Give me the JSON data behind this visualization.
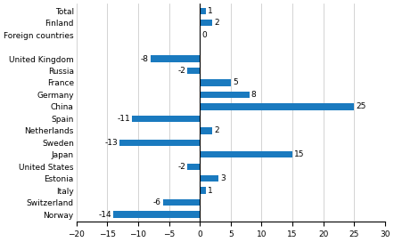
{
  "categories": [
    "Norway",
    "Switzerland",
    "Italy",
    "Estonia",
    "United States",
    "Japan",
    "Sweden",
    "Netherlands",
    "Spain",
    "China",
    "Germany",
    "France",
    "Russia",
    "United Kingdom",
    "",
    "Foreign countries",
    "Finland",
    "Total"
  ],
  "values": [
    -14,
    -6,
    1,
    3,
    -2,
    15,
    -13,
    2,
    -11,
    25,
    8,
    5,
    -2,
    -8,
    null,
    0,
    2,
    1
  ],
  "bar_color": "#1a7abf",
  "xlim": [
    -20,
    30
  ],
  "xticks": [
    -20,
    -15,
    -10,
    -5,
    0,
    5,
    10,
    15,
    20,
    25,
    30
  ],
  "figsize": [
    4.42,
    2.72
  ],
  "dpi": 100
}
